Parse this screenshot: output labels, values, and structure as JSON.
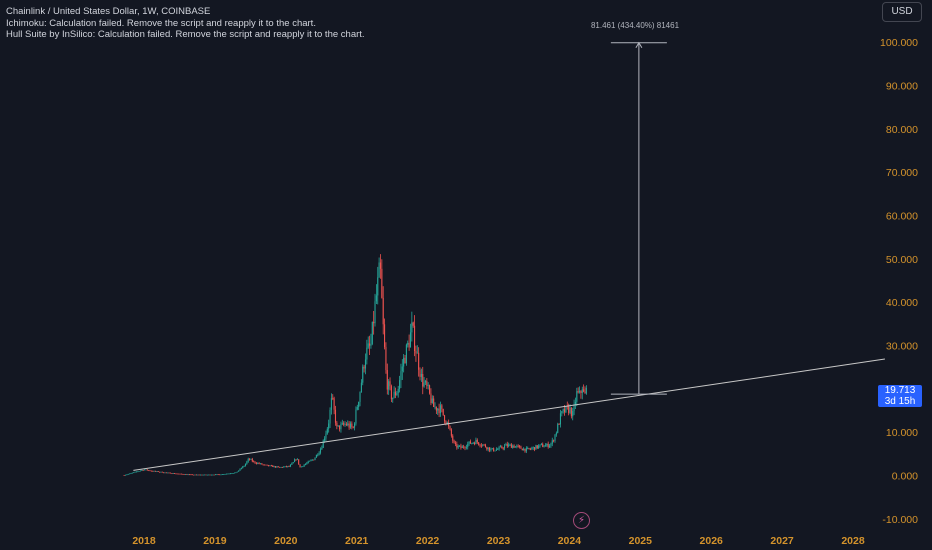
{
  "legend": {
    "symbol_line": "Chainlink / United States Dollar, 1W, COINBASE",
    "indicator_1": "Ichimoku: Calculation failed. Remove the script and reapply it to the chart.",
    "indicator_2": "Hull Suite by InSilico: Calculation failed. Remove the script and reapply it to the chart."
  },
  "currency_button": "USD",
  "last_price": {
    "value": "19.713",
    "countdown": "3d 15h",
    "color": "#2962ff"
  },
  "measure_tool": {
    "label": "81.461 (434.40%) 81461"
  },
  "colors": {
    "background": "#131722",
    "up": "#26a69a",
    "down": "#ef5350",
    "axis_text": "#d4932c",
    "trendline": "#c8c8c8"
  },
  "chart_data": {
    "type": "candlestick",
    "title": "Chainlink / United States Dollar, 1W, COINBASE",
    "xlabel": "",
    "ylabel": "",
    "x_ticks": [
      "2018",
      "2019",
      "2020",
      "2021",
      "2022",
      "2023",
      "2024",
      "2025",
      "2026",
      "2027",
      "2028"
    ],
    "y_ticks": [
      "-10.000",
      "0.000",
      "10.000",
      "20.000",
      "30.000",
      "40.000",
      "50.000",
      "60.000",
      "70.000",
      "80.000",
      "90.000",
      "100.000"
    ],
    "ylim": [
      -10,
      110
    ],
    "xlim": [
      2017.5,
      2028.4
    ],
    "grid": false,
    "price_path": [
      [
        2017.72,
        0.2
      ],
      [
        2017.85,
        0.8
      ],
      [
        2018.0,
        1.5
      ],
      [
        2018.1,
        1.2
      ],
      [
        2018.3,
        0.8
      ],
      [
        2018.5,
        0.5
      ],
      [
        2018.7,
        0.3
      ],
      [
        2018.9,
        0.3
      ],
      [
        2019.1,
        0.4
      ],
      [
        2019.3,
        0.8
      ],
      [
        2019.42,
        2.5
      ],
      [
        2019.48,
        4.0
      ],
      [
        2019.55,
        3.2
      ],
      [
        2019.7,
        2.5
      ],
      [
        2019.9,
        2.0
      ],
      [
        2020.05,
        2.2
      ],
      [
        2020.1,
        3.0
      ],
      [
        2020.15,
        4.2
      ],
      [
        2020.2,
        2.0
      ],
      [
        2020.3,
        3.0
      ],
      [
        2020.4,
        4.0
      ],
      [
        2020.5,
        6.5
      ],
      [
        2020.6,
        12.0
      ],
      [
        2020.65,
        18.0
      ],
      [
        2020.72,
        11.0
      ],
      [
        2020.85,
        12.0
      ],
      [
        2020.95,
        11.0
      ],
      [
        2021.05,
        20.0
      ],
      [
        2021.12,
        28.0
      ],
      [
        2021.2,
        30.0
      ],
      [
        2021.25,
        38.0
      ],
      [
        2021.33,
        48.0
      ],
      [
        2021.37,
        35.0
      ],
      [
        2021.42,
        22.0
      ],
      [
        2021.5,
        18.0
      ],
      [
        2021.58,
        20.0
      ],
      [
        2021.65,
        26.0
      ],
      [
        2021.72,
        30.0
      ],
      [
        2021.78,
        34.0
      ],
      [
        2021.85,
        28.0
      ],
      [
        2021.92,
        22.0
      ],
      [
        2022.0,
        20.0
      ],
      [
        2022.08,
        16.0
      ],
      [
        2022.18,
        15.5
      ],
      [
        2022.28,
        12.0
      ],
      [
        2022.38,
        7.0
      ],
      [
        2022.48,
        6.5
      ],
      [
        2022.58,
        7.5
      ],
      [
        2022.68,
        8.0
      ],
      [
        2022.8,
        7.0
      ],
      [
        2022.9,
        6.0
      ],
      [
        2023.0,
        6.2
      ],
      [
        2023.1,
        7.0
      ],
      [
        2023.2,
        7.0
      ],
      [
        2023.3,
        6.5
      ],
      [
        2023.4,
        6.0
      ],
      [
        2023.5,
        6.5
      ],
      [
        2023.6,
        7.0
      ],
      [
        2023.68,
        7.0
      ],
      [
        2023.75,
        7.5
      ],
      [
        2023.82,
        10.5
      ],
      [
        2023.88,
        14.0
      ],
      [
        2023.93,
        15.0
      ],
      [
        2024.0,
        15.5
      ],
      [
        2024.05,
        14.0
      ],
      [
        2024.1,
        19.0
      ],
      [
        2024.15,
        18.5
      ],
      [
        2024.18,
        21.0
      ],
      [
        2024.21,
        18.0
      ],
      [
        2024.24,
        19.7
      ]
    ],
    "trendline": [
      [
        2017.85,
        1.3
      ],
      [
        2028.45,
        27.0
      ]
    ],
    "measure": {
      "x": 2024.98,
      "from": 18.9,
      "to": 100.0,
      "label": "81.461 (434.40%) 81461"
    },
    "last_value": 19.713
  }
}
